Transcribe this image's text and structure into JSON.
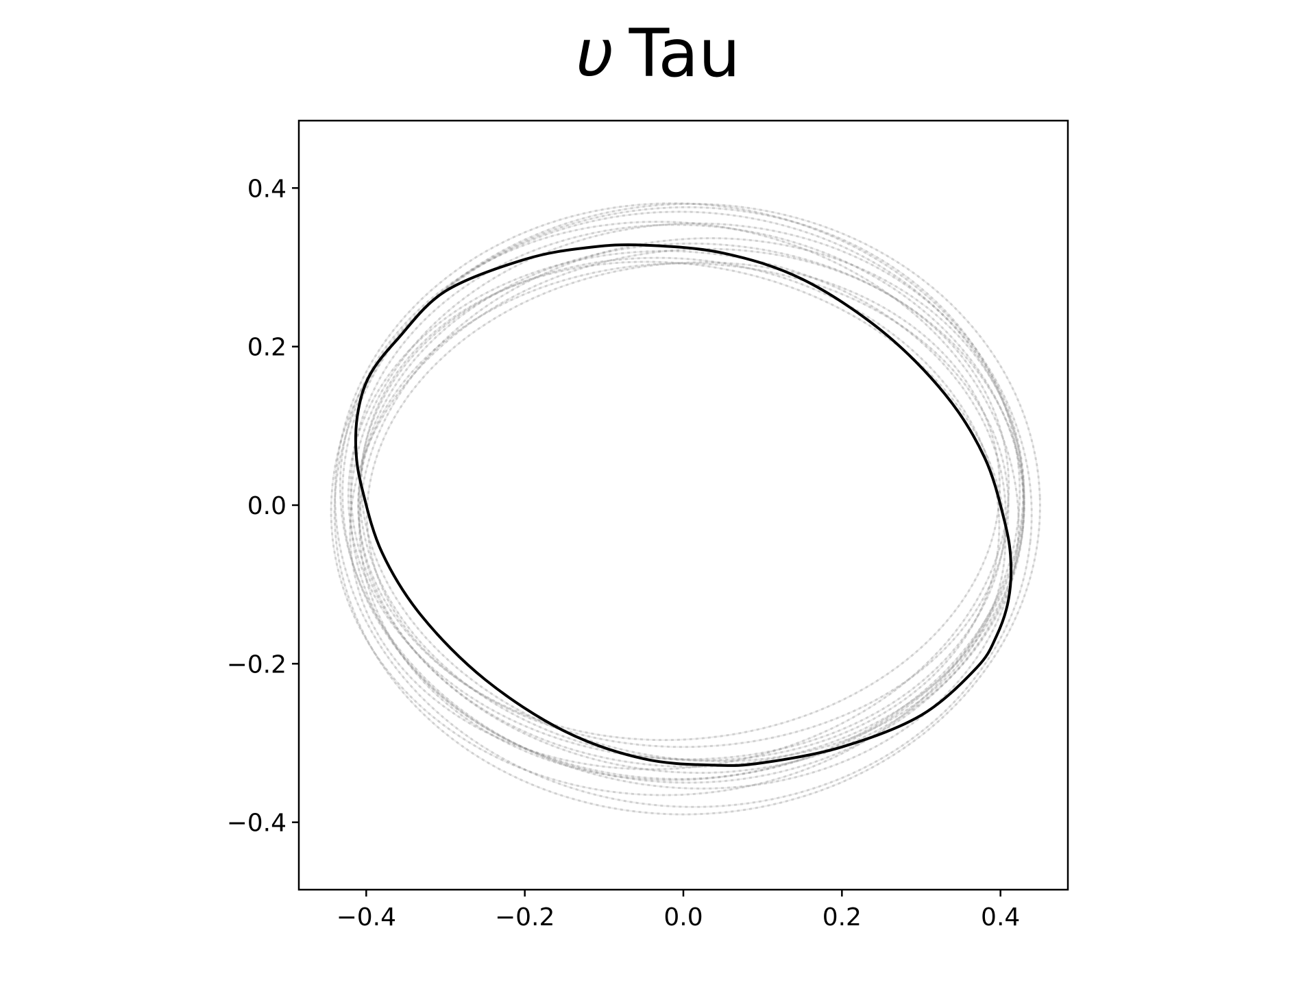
{
  "chart_data": {
    "type": "line",
    "title_symbol": "υ",
    "title_text": "Tau",
    "xlabel": "",
    "ylabel": "",
    "xlim": [
      -0.485,
      0.485
    ],
    "ylim": [
      -0.485,
      0.485
    ],
    "xticks": [
      -0.4,
      -0.2,
      0.0,
      0.2,
      0.4
    ],
    "yticks": [
      -0.4,
      -0.2,
      0.0,
      0.2,
      0.4
    ],
    "xtick_labels": [
      "−0.4",
      "−0.2",
      "0.0",
      "0.2",
      "0.4"
    ],
    "ytick_labels": [
      "−0.4",
      "−0.2",
      "0.0",
      "0.2",
      "0.4"
    ],
    "grid": false,
    "legend": "none",
    "main_color": "#000000",
    "sample_color": "#808080",
    "series": [
      {
        "role": "best-fit orbit",
        "x": [
          -0.05,
          0.05,
          0.15,
          0.25,
          0.33,
          0.38,
          0.405,
          0.413,
          0.41,
          0.395,
          0.37,
          0.3,
          0.2,
          0.1,
          0.04,
          -0.05,
          -0.15,
          -0.25,
          -0.33,
          -0.38,
          -0.405,
          -0.413,
          -0.41,
          -0.395,
          -0.36,
          -0.3,
          -0.2,
          -0.12,
          -0.05
        ],
        "y": [
          0.328,
          0.318,
          0.285,
          0.22,
          0.14,
          0.06,
          -0.02,
          -0.07,
          -0.12,
          -0.165,
          -0.205,
          -0.265,
          -0.305,
          -0.325,
          -0.328,
          -0.32,
          -0.285,
          -0.22,
          -0.14,
          -0.06,
          0.02,
          0.07,
          0.12,
          0.165,
          0.21,
          0.27,
          0.31,
          0.325,
          0.328
        ]
      }
    ],
    "samples": [
      {
        "ry": 0.305,
        "rx": 0.41,
        "rot": 0,
        "dx": 0.0,
        "dy": 0.0
      },
      {
        "ry": 0.38,
        "rx": 0.44,
        "rot": 6,
        "dx": 0.0,
        "dy": 0.0
      },
      {
        "ry": 0.35,
        "rx": 0.425,
        "rot": -4,
        "dx": 0.005,
        "dy": 0.005
      },
      {
        "ry": 0.315,
        "rx": 0.405,
        "rot": 8,
        "dx": -0.005,
        "dy": -0.005
      },
      {
        "ry": 0.36,
        "rx": 0.43,
        "rot": 2,
        "dx": 0.0,
        "dy": 0.01
      },
      {
        "ry": 0.34,
        "rx": 0.42,
        "rot": -8,
        "dx": 0.01,
        "dy": -0.005
      },
      {
        "ry": 0.32,
        "rx": 0.415,
        "rot": 4,
        "dx": -0.008,
        "dy": 0.0
      },
      {
        "ry": 0.385,
        "rx": 0.445,
        "rot": -2,
        "dx": 0.005,
        "dy": -0.005
      },
      {
        "ry": 0.3,
        "rx": 0.4,
        "rot": -6,
        "dx": 0.0,
        "dy": 0.005
      },
      {
        "ry": 0.355,
        "rx": 0.43,
        "rot": 10,
        "dx": -0.005,
        "dy": 0.0
      },
      {
        "ry": 0.33,
        "rx": 0.42,
        "rot": 0,
        "dx": 0.01,
        "dy": 0.0
      },
      {
        "ry": 0.37,
        "rx": 0.435,
        "rot": -6,
        "dx": -0.01,
        "dy": 0.005
      },
      {
        "ry": 0.31,
        "rx": 0.41,
        "rot": 12,
        "dx": 0.0,
        "dy": -0.008
      },
      {
        "ry": 0.345,
        "rx": 0.425,
        "rot": 5,
        "dx": 0.005,
        "dy": 0.008
      },
      {
        "ry": 0.325,
        "rx": 0.418,
        "rot": -10,
        "dx": -0.005,
        "dy": -0.005
      }
    ]
  }
}
